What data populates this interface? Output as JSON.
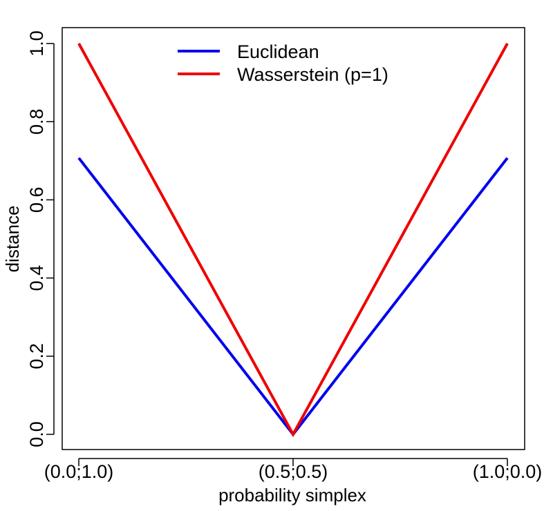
{
  "chart_data": {
    "type": "line",
    "title": "",
    "xlabel": "probability simplex",
    "ylabel": "distance",
    "x": [
      0.0,
      0.5,
      1.0
    ],
    "xlim": [
      0.0,
      1.0
    ],
    "ylim": [
      0.0,
      1.0
    ],
    "x_tick_values": [
      0.0,
      0.5,
      1.0
    ],
    "x_tick_labels": [
      "(0.0;1.0)",
      "(0.5;0.5)",
      "(1.0;0.0)"
    ],
    "y_tick_values": [
      0.0,
      0.2,
      0.4,
      0.6,
      0.8,
      1.0
    ],
    "y_tick_labels": [
      "0.0",
      "0.2",
      "0.4",
      "0.6",
      "0.8",
      "1.0"
    ],
    "grid": false,
    "legend_position": "top-center",
    "series": [
      {
        "name": "Euclidean",
        "color": "#0000ee",
        "values": [
          0.707,
          0.0,
          0.707
        ]
      },
      {
        "name": "Wasserstein (p=1)",
        "color": "#ee0000",
        "values": [
          1.0,
          0.0,
          1.0
        ]
      }
    ]
  }
}
